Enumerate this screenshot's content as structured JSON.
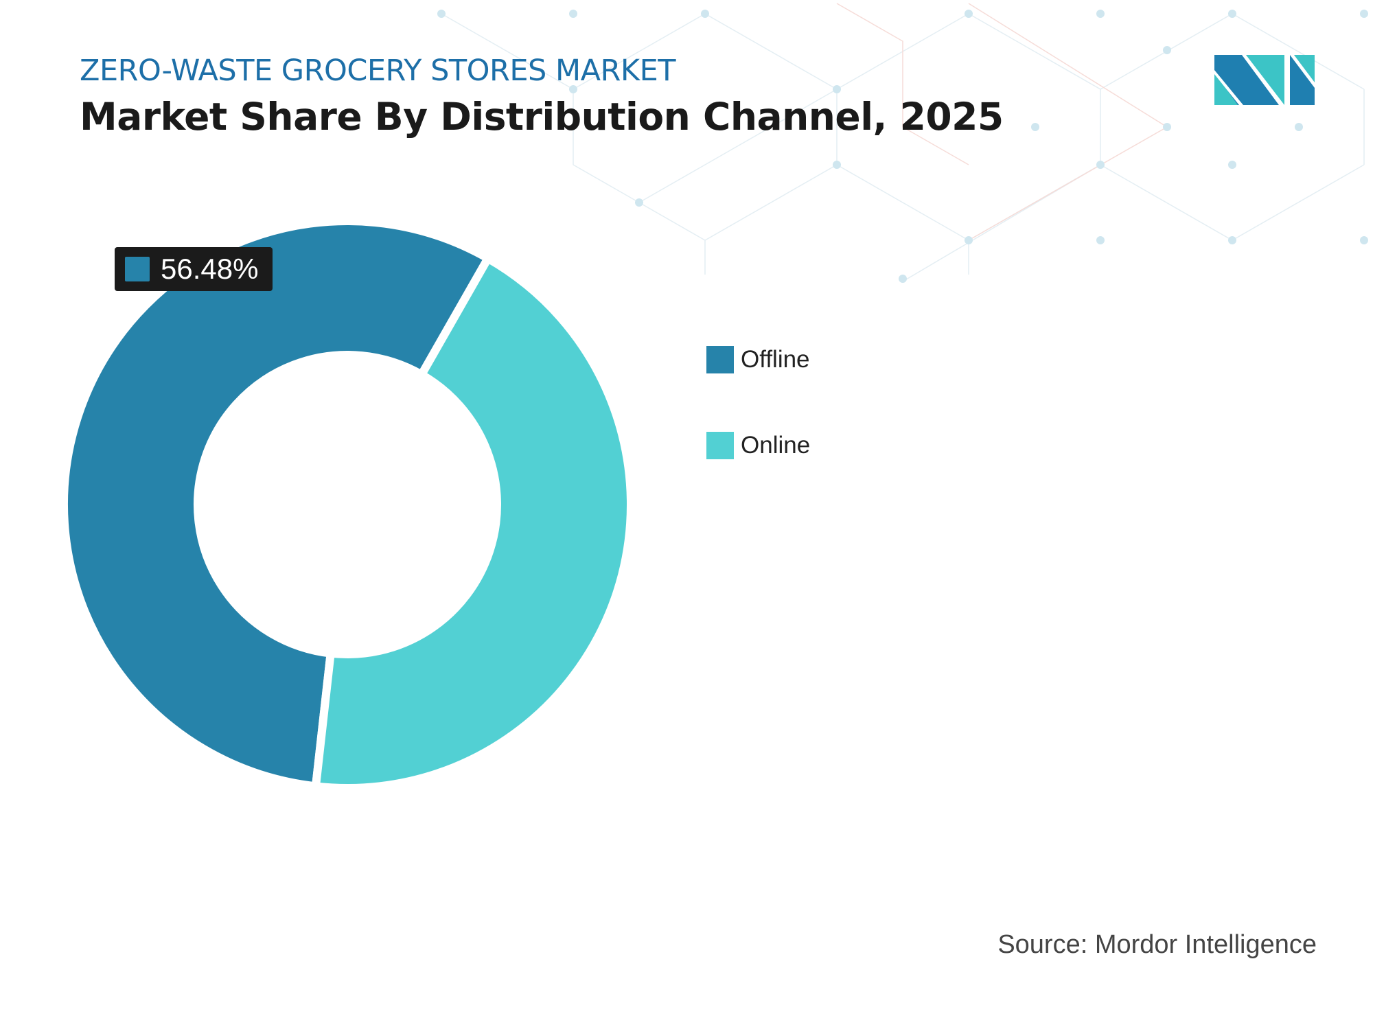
{
  "header": {
    "subtitle": "ZERO-WASTE GROCERY STORES MARKET",
    "title": "Market Share By Distribution Channel, 2025"
  },
  "chart_data": {
    "type": "pie",
    "variant": "donut",
    "title": "Market Share By Distribution Channel, 2025",
    "categories": [
      "Offline",
      "Online"
    ],
    "values": [
      56.48,
      43.52
    ],
    "colors": [
      "#2683aa",
      "#52d0d3"
    ],
    "data_labels": [
      {
        "category": "Offline",
        "text": "56.48%"
      }
    ],
    "legend": "right"
  },
  "legend": {
    "items": [
      {
        "label": "Offline",
        "color": "#2683aa"
      },
      {
        "label": "Online",
        "color": "#52d0d3"
      }
    ]
  },
  "badge": {
    "text": "56.48%"
  },
  "source": "Source: Mordor Intelligence",
  "logo": {
    "name": "Mordor Intelligence logo",
    "colors": [
      "#1f7fb0",
      "#3cc4c6"
    ]
  }
}
